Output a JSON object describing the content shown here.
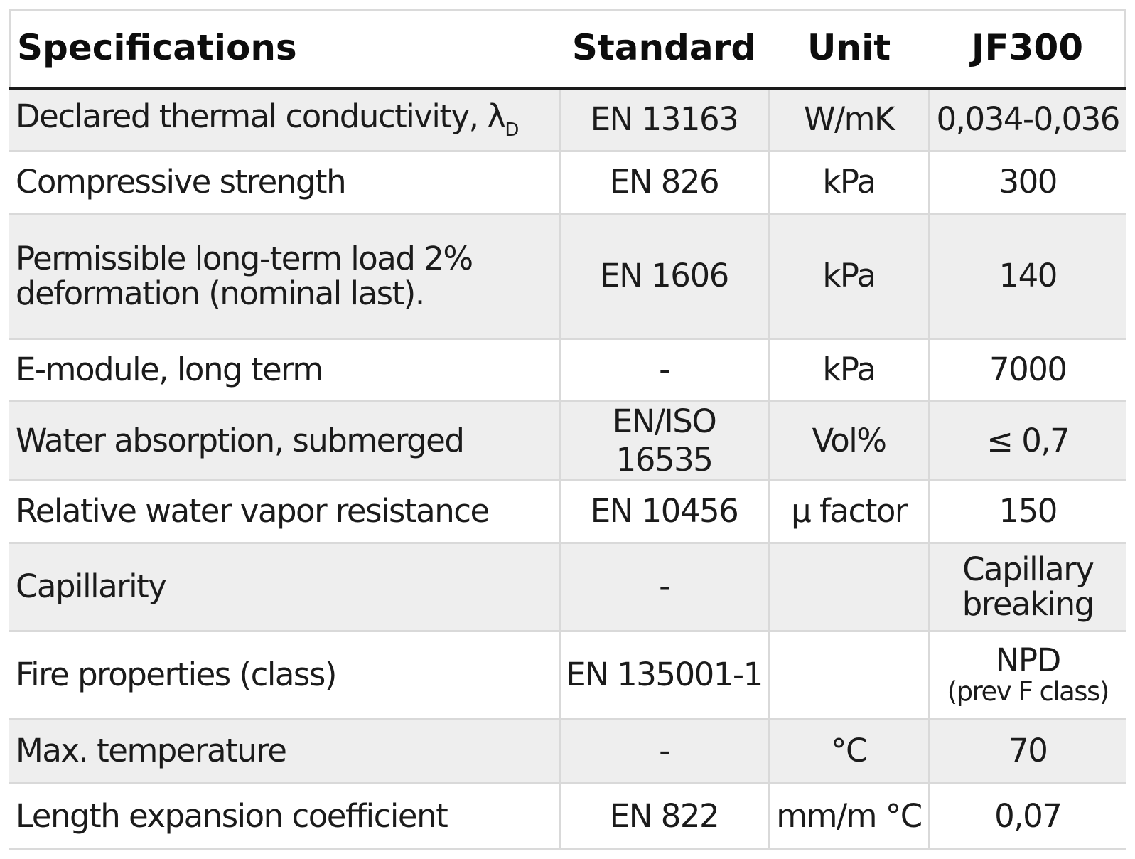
{
  "table": {
    "headers": {
      "specifications": "Specifications",
      "standard": "Standard",
      "unit": "Unit",
      "product": "JF300"
    },
    "rows": [
      {
        "spec": "Declared thermal conductivity, λ",
        "spec_sub": "D",
        "standard": "EN 13163",
        "unit": "W/mK",
        "value": "0,034-0,036"
      },
      {
        "spec": "Compressive strength",
        "standard": "EN 826",
        "unit": "kPa",
        "value": "300"
      },
      {
        "spec_line1": "Permissible long-term load 2%",
        "spec_line2": "deformation (nominal last).",
        "standard": "EN 1606",
        "unit": "kPa",
        "value": "140"
      },
      {
        "spec": "E-module, long term",
        "standard": "-",
        "unit": "kPa",
        "value": "7000"
      },
      {
        "spec": "Water absorption, submerged",
        "standard": "EN/ISO 16535",
        "unit": "Vol%",
        "value": "≤ 0,7"
      },
      {
        "spec": "Relative water vapor resistance",
        "standard": "EN 10456",
        "unit": "µ factor",
        "value": "150"
      },
      {
        "spec": "Capillarity",
        "standard": "-",
        "unit": "",
        "value_line1": "Capillary",
        "value_line2": "breaking"
      },
      {
        "spec": "Fire properties (class)",
        "standard": "EN 135001-1",
        "unit": "",
        "value": "NPD",
        "value_note": "(prev F class)"
      },
      {
        "spec": "Max. temperature",
        "standard": "-",
        "unit": "°C",
        "value": "70"
      },
      {
        "spec": "Length expansion coefficient",
        "standard": "EN 822",
        "unit": "mm/m °C",
        "value": "0,07"
      }
    ]
  },
  "colors": {
    "shaded_row": "#eeeeee",
    "plain_row": "#ffffff",
    "grid_line": "#d9d9d9",
    "header_rule": "#1a1a1a",
    "text": "#1b1b1b"
  }
}
